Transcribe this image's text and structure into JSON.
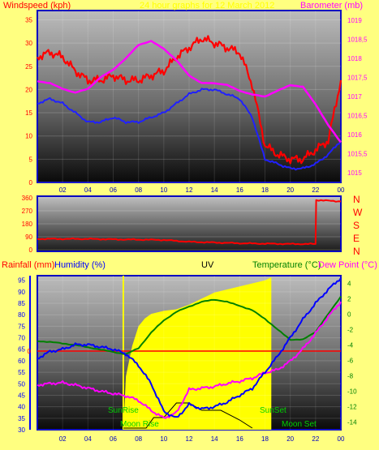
{
  "header": {
    "windspeed_label": "Windspeed (kph)",
    "title": "24 hour graphs for 12 March 2012",
    "barometer_label": "Barometer (mb)"
  },
  "wind_dir_labels": [
    "N",
    "W",
    "S",
    "E",
    "N"
  ],
  "bottom_labels": {
    "rainfall": "Rainfall (mm)",
    "humidity": "Humidity (%)",
    "uv": "UV",
    "temperature": "Temperature (°C)",
    "dewpoint": "Dew Point (°C)"
  },
  "events": {
    "sunrise": "SunRise",
    "sunset": "SunSet",
    "moonrise": "Moon Rise",
    "moonset": "Moon Set"
  },
  "colors": {
    "background": "#ffff80",
    "gust": "#ff0000",
    "avg_wind": "#2020ff",
    "barometer": "#ff00ff",
    "humidity": "#0000ff",
    "temperature": "#008000",
    "dewpoint": "#ff00ff",
    "uv": "#ffff00",
    "rain_axis": "#ff0000"
  },
  "chart_data": [
    {
      "type": "line",
      "title": "24 hour graphs for 12 March 2012",
      "x_ticks": [
        "02",
        "04",
        "06",
        "08",
        "10",
        "12",
        "14",
        "16",
        "18",
        "20",
        "22",
        "00"
      ],
      "xlim": [
        0,
        24
      ],
      "ylabel_left": "Windspeed (kph)",
      "ylim_left": [
        0,
        37
      ],
      "yticks_left": [
        0,
        5,
        10,
        15,
        20,
        25,
        30,
        35
      ],
      "ylabel_right": "Barometer (mb)",
      "ylim_right": [
        1014.75,
        1019.25
      ],
      "yticks_right": [
        "1015",
        "1015,5",
        "1016",
        "1016,5",
        "1017",
        "1017,5",
        "1018",
        "1018,5",
        "1019"
      ],
      "series": [
        {
          "name": "Windspeed (kph)",
          "color": "#2020ff",
          "axis": "left",
          "x": [
            0,
            1,
            2,
            3,
            4,
            5,
            6,
            7,
            8,
            9,
            10,
            11,
            12,
            13,
            14,
            15,
            16,
            17,
            18,
            19,
            20,
            21,
            22,
            23,
            24
          ],
          "y": [
            17,
            18,
            17,
            15,
            13,
            13,
            14,
            13,
            13,
            14,
            15,
            17,
            19,
            20,
            20,
            19,
            18,
            14,
            5,
            4,
            3,
            3,
            4,
            6,
            9
          ]
        },
        {
          "name": "Gust",
          "color": "#ff0000",
          "axis": "left",
          "x": [
            0,
            1,
            2,
            3,
            4,
            5,
            6,
            7,
            8,
            9,
            10,
            11,
            12,
            13,
            14,
            15,
            16,
            17,
            18,
            19,
            20,
            21,
            22,
            23,
            24
          ],
          "y": [
            27,
            28,
            27,
            24,
            22,
            22,
            23,
            22,
            22,
            23,
            24,
            27,
            29,
            31,
            30,
            29,
            28,
            21,
            8,
            6,
            5,
            5,
            7,
            9,
            22
          ]
        },
        {
          "name": "Barometer (mb)",
          "color": "#ff00ff",
          "axis": "right",
          "x": [
            0,
            1,
            2,
            3,
            4,
            5,
            6,
            7,
            8,
            9,
            10,
            11,
            12,
            13,
            14,
            15,
            16,
            17,
            18,
            19,
            20,
            21,
            22,
            23,
            24
          ],
          "y": [
            1017.4,
            1017.35,
            1017.2,
            1017.1,
            1017.2,
            1017.5,
            1017.7,
            1018.0,
            1018.35,
            1018.45,
            1018.25,
            1017.95,
            1017.55,
            1017.35,
            1017.35,
            1017.3,
            1017.15,
            1017.05,
            1017.0,
            1017.15,
            1017.3,
            1017.25,
            1016.8,
            1016.25,
            1015.8
          ]
        }
      ]
    },
    {
      "type": "line",
      "x_ticks": [
        "02",
        "04",
        "06",
        "08",
        "10",
        "12",
        "14",
        "16",
        "18",
        "20",
        "22",
        "00"
      ],
      "xlim": [
        0,
        24
      ],
      "ylim": [
        0,
        360
      ],
      "yticks": [
        0,
        90,
        180,
        270,
        360
      ],
      "series": [
        {
          "name": "Wind direction",
          "color": "#ff0000",
          "x": [
            0,
            2,
            4,
            6,
            8,
            10,
            12,
            14,
            16,
            18,
            20,
            22,
            22.05,
            23,
            24
          ],
          "y": [
            75,
            75,
            75,
            72,
            70,
            68,
            55,
            50,
            45,
            42,
            40,
            40,
            345,
            340,
            335
          ]
        }
      ]
    },
    {
      "type": "line",
      "x_ticks": [
        "02",
        "04",
        "06",
        "08",
        "10",
        "12",
        "14",
        "16",
        "18",
        "20",
        "22",
        "00"
      ],
      "xlim": [
        0,
        24
      ],
      "ylabel_left": "Humidity (%)",
      "ylim_left": [
        30,
        97
      ],
      "yticks_left": [
        30,
        35,
        40,
        45,
        50,
        55,
        60,
        65,
        70,
        75,
        80,
        85,
        90,
        95
      ],
      "ylabel_rain": "Rainfall (mm)",
      "rain_value": 0,
      "ylabel_right": "Temperature (°C) / Dew Point (°C)",
      "ylim_right": [
        -15,
        5
      ],
      "yticks_right": [
        -14,
        -12,
        -10,
        -8,
        -6,
        -4,
        -2,
        0,
        2,
        4
      ],
      "series": [
        {
          "name": "Humidity (%)",
          "color": "#0000ff",
          "axis": "left",
          "x": [
            0,
            1,
            2,
            3,
            4,
            5,
            6,
            7,
            8,
            9,
            10,
            11,
            12,
            13,
            14,
            15,
            16,
            17,
            18,
            19,
            20,
            21,
            22,
            23,
            24
          ],
          "y": [
            61,
            64,
            65,
            67,
            67,
            66,
            65,
            63,
            58,
            50,
            38,
            35,
            41,
            39,
            40,
            42,
            45,
            48,
            55,
            62,
            70,
            78,
            85,
            91,
            96
          ]
        },
        {
          "name": "Temperature (°C)",
          "color": "#008000",
          "axis": "right",
          "x": [
            0,
            1,
            2,
            3,
            4,
            5,
            6,
            7,
            8,
            9,
            10,
            11,
            12,
            13,
            14,
            15,
            16,
            17,
            18,
            19,
            20,
            21,
            22,
            23,
            24
          ],
          "y": [
            -3.5,
            -3.6,
            -3.8,
            -4.0,
            -4.3,
            -4.6,
            -4.9,
            -5.2,
            -4.4,
            -2.4,
            -0.8,
            0.3,
            1.0,
            1.6,
            1.9,
            1.6,
            1.1,
            0.5,
            -0.6,
            -2.0,
            -3.3,
            -3.3,
            -2.3,
            0.0,
            2.3
          ]
        },
        {
          "name": "Dew Point (°C)",
          "color": "#ff00ff",
          "axis": "right",
          "x": [
            0,
            1,
            2,
            3,
            4,
            5,
            6,
            7,
            8,
            9,
            10,
            11,
            12,
            13,
            14,
            15,
            16,
            17,
            18,
            19,
            20,
            21,
            22,
            23,
            24
          ],
          "y": [
            -9.2,
            -9.0,
            -8.9,
            -9.2,
            -9.6,
            -10.0,
            -10.3,
            -10.6,
            -11.2,
            -12.5,
            -13.5,
            -12.8,
            -9.8,
            -9.6,
            -9.4,
            -9.0,
            -8.7,
            -8.3,
            -7.6,
            -7.2,
            -6.1,
            -4.5,
            -2.5,
            -0.3,
            1.6
          ]
        },
        {
          "name": "UV",
          "color": "#ffff00",
          "axis": "uv",
          "x": [
            6.8,
            7.0,
            7.5,
            8.0,
            8.5,
            9.0,
            10.0,
            11.0,
            12.0,
            13.0,
            14.0,
            15.0,
            16.0,
            17.0,
            18.0,
            18.5
          ],
          "y": [
            0,
            0.35,
            0.55,
            0.68,
            0.73,
            0.76,
            0.78,
            0.79,
            0.82,
            0.86,
            0.9,
            0.92,
            0.94,
            0.96,
            0.98,
            1.0
          ]
        }
      ]
    }
  ]
}
